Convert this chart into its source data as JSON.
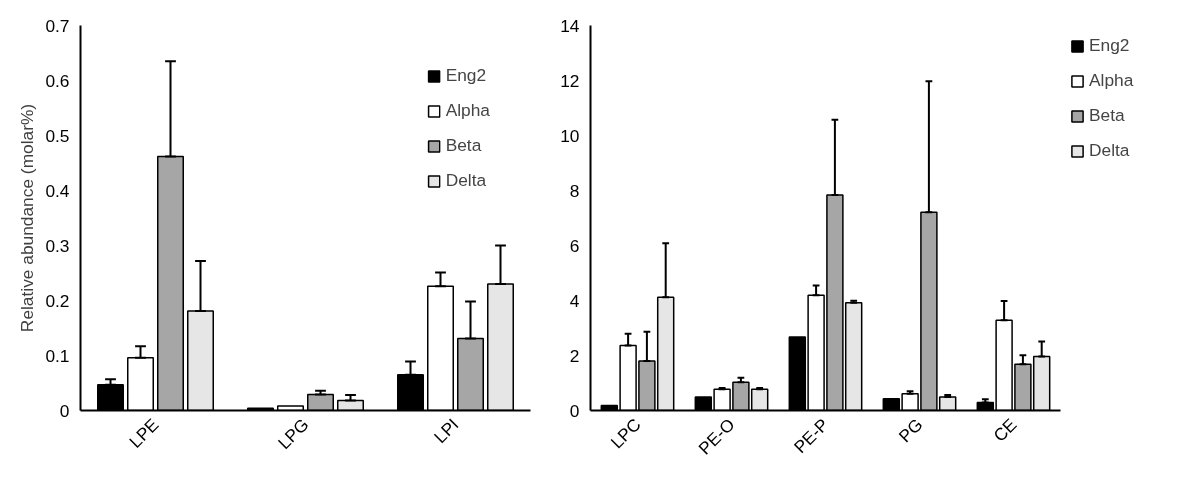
{
  "chart_data": [
    {
      "type": "bar",
      "ylabel": "Relative abundance (molar%)",
      "categories": [
        "LPE",
        "LPG",
        "LPI"
      ],
      "ylim": [
        0,
        0.7
      ],
      "yticks": [
        0,
        0.1,
        0.2,
        0.3,
        0.4,
        0.5,
        0.6,
        0.7
      ],
      "grid": false,
      "legend": "top right",
      "series": [
        {
          "name": "Eng2",
          "color": "#000000",
          "values": [
            0.047,
            0.004,
            0.065
          ],
          "errors": [
            [
              0.047,
              0.057
            ],
            null,
            [
              0.065,
              0.089
            ]
          ]
        },
        {
          "name": "Alpha",
          "color": "#ffffff",
          "values": [
            0.096,
            0.008,
            0.226
          ],
          "errors": [
            [
              0.096,
              0.117
            ],
            null,
            [
              0.226,
              0.251
            ]
          ]
        },
        {
          "name": "Beta",
          "color": "#a6a6a6",
          "values": [
            0.462,
            0.029,
            0.131
          ],
          "errors": [
            [
              0.462,
              0.635
            ],
            [
              0.029,
              0.036
            ],
            [
              0.131,
              0.198
            ]
          ]
        },
        {
          "name": "Delta",
          "color": "#e6e6e6",
          "values": [
            0.181,
            0.018,
            0.23
          ],
          "errors": [
            [
              0.181,
              0.272
            ],
            [
              0.018,
              0.028
            ],
            [
              0.23,
              0.3
            ]
          ]
        }
      ]
    },
    {
      "type": "bar",
      "categories": [
        "LPC",
        "PE-O",
        "PE-P",
        "PG",
        "CE"
      ],
      "ylim": [
        0,
        14
      ],
      "yticks": [
        0,
        2,
        4,
        6,
        8,
        10,
        12,
        14
      ],
      "grid": false,
      "legend": "right",
      "series": [
        {
          "name": "Eng2",
          "color": "#000000",
          "values": [
            0.18,
            0.49,
            2.67,
            0.43,
            0.29
          ],
          "errors": [
            null,
            null,
            null,
            null,
            [
              0.29,
              0.41
            ]
          ]
        },
        {
          "name": "Alpha",
          "color": "#ffffff",
          "values": [
            2.36,
            0.77,
            4.19,
            0.61,
            3.28
          ],
          "errors": [
            [
              2.36,
              2.79
            ],
            [
              0.77,
              0.82
            ],
            [
              4.19,
              4.55
            ],
            [
              0.61,
              0.7
            ],
            [
              3.28,
              3.98
            ]
          ]
        },
        {
          "name": "Beta",
          "color": "#a6a6a6",
          "values": [
            1.8,
            1.03,
            7.84,
            7.21,
            1.68
          ],
          "errors": [
            [
              1.8,
              2.86
            ],
            [
              1.03,
              1.19
            ],
            [
              7.84,
              10.57
            ],
            [
              7.21,
              11.97
            ],
            [
              1.68,
              2.01
            ]
          ]
        },
        {
          "name": "Delta",
          "color": "#e6e6e6",
          "values": [
            4.12,
            0.77,
            3.92,
            0.49,
            1.96
          ],
          "errors": [
            [
              4.12,
              6.08
            ],
            [
              0.77,
              0.82
            ],
            [
              3.92,
              3.99
            ],
            [
              0.49,
              0.56
            ],
            [
              1.96,
              2.51
            ]
          ]
        }
      ]
    }
  ]
}
